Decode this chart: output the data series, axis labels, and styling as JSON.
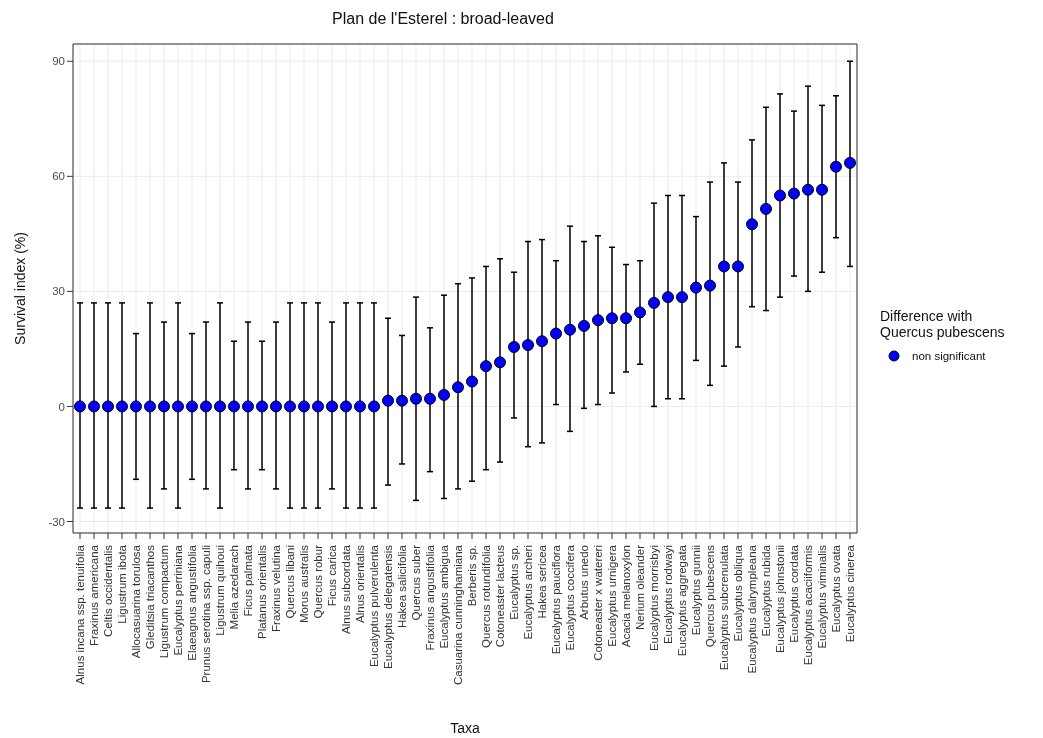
{
  "chart_data": {
    "type": "scatter",
    "title": "Plan de l'Esterel : broad-leaved",
    "xlabel": "Taxa",
    "ylabel": "Survival index (%)",
    "legend_title": "Difference with\nQuercus pubescens",
    "categories": [
      "Alnus incana ssp. tenuifolia",
      "Fraxinus americana",
      "Celtis occidentalis",
      "Ligustrum ibota",
      "Allocasuarina torulosa",
      "Gleditsia triacanthos",
      "Ligustrum compactum",
      "Eucalyptus perriniana",
      "Elaeagnus angustifolia",
      "Prunus serotina ssp. capuli",
      "Ligustrum quihoui",
      "Melia azedarach",
      "Ficus palmata",
      "Platanus orientalis",
      "Fraxinus velutina",
      "Quercus libani",
      "Morus australis",
      "Quercus robur",
      "Ficus carica",
      "Alnus subcordata",
      "Alnus orientalis",
      "Eucalyptus pulverulenta",
      "Eucalyptus delegatensis",
      "Hakea salicifolia",
      "Quercus suber",
      "Fraxinus angustifolia",
      "Eucalyptus ambigua",
      "Casuarina cunninghamiana",
      "Berberis sp.",
      "Quercus rotundifolia",
      "Cotoneaster lacteus",
      "Eucalyptus sp.",
      "Eucalyptus archeri",
      "Hakea sericea",
      "Eucalyptus pauciflora",
      "Eucalyptus coccifera",
      "Arbutus unedo",
      "Cotoneaster x watereri",
      "Eucalyptus urnigera",
      "Acacia melanoxylon",
      "Nerium oleander",
      "Eucalyptus morrisbyi",
      "Eucalyptus rodwayi",
      "Eucalyptus aggregata",
      "Eucalyptus gunnii",
      "Quercus pubescens",
      "Eucalyptus subcrenulata",
      "Eucalyptus obliqua",
      "Eucalyptus dalrympleana",
      "Eucalyptus rubida",
      "Eucalyptus johnstonii",
      "Eucalyptus cordata",
      "Eucalyptus acaciiformis",
      "Eucalyptus viminalis",
      "Eucalyptus ovata",
      "Eucalyptus cinerea"
    ],
    "series": [
      {
        "name": "non significant",
        "color": "#0000ff",
        "values": [
          0,
          0,
          0,
          0,
          0,
          0,
          0,
          0,
          0,
          0,
          0,
          0,
          0,
          0,
          0,
          0,
          0,
          0,
          0,
          0,
          0,
          0,
          1.5,
          1.5,
          2,
          2,
          3,
          5,
          6.5,
          10.5,
          11.5,
          15.5,
          16,
          17,
          19,
          20,
          21,
          22.5,
          23,
          23,
          24.5,
          27,
          28.5,
          28.5,
          31,
          31.5,
          36.5,
          36.5,
          47.5,
          51.5,
          55,
          55.5,
          56.5,
          56.5,
          62.5,
          63.5
        ],
        "errors": [
          [
            -26.5,
            27
          ],
          [
            -26.5,
            27
          ],
          [
            -26.5,
            27
          ],
          [
            -26.5,
            27
          ],
          [
            -19,
            19
          ],
          [
            -26.5,
            27
          ],
          [
            -21.5,
            22
          ],
          [
            -26.5,
            27
          ],
          [
            -19,
            19
          ],
          [
            -21.5,
            22
          ],
          [
            -26.5,
            27
          ],
          [
            -16.5,
            17
          ],
          [
            -21.5,
            22
          ],
          [
            -16.5,
            17
          ],
          [
            -21.5,
            22
          ],
          [
            -26.5,
            27
          ],
          [
            -26.5,
            27
          ],
          [
            -26.5,
            27
          ],
          [
            -21.5,
            22
          ],
          [
            -26.5,
            27
          ],
          [
            -26.5,
            27
          ],
          [
            -26.5,
            27
          ],
          [
            -20.5,
            23
          ],
          [
            -15,
            18.5
          ],
          [
            -24.5,
            28.5
          ],
          [
            -17,
            20.5
          ],
          [
            -24,
            29
          ],
          [
            -21.5,
            32
          ],
          [
            -19.5,
            33.5
          ],
          [
            -16.5,
            36.5
          ],
          [
            -14.5,
            38.5
          ],
          [
            -3,
            35
          ],
          [
            -10.5,
            43
          ],
          [
            -9.5,
            43.5
          ],
          [
            0.5,
            38
          ],
          [
            -6.5,
            47
          ],
          [
            -0.5,
            43
          ],
          [
            0.5,
            44.5
          ],
          [
            3.5,
            41.5
          ],
          [
            9,
            37
          ],
          [
            11,
            38
          ],
          [
            0,
            53
          ],
          [
            2,
            55
          ],
          [
            2,
            55
          ],
          [
            12,
            49.5
          ],
          [
            5.5,
            58.5
          ],
          [
            10.5,
            63.5
          ],
          [
            15.5,
            58.5
          ],
          [
            26,
            69.5
          ],
          [
            25,
            78
          ],
          [
            28.5,
            81.5
          ],
          [
            34,
            77
          ],
          [
            30,
            83.5
          ],
          [
            35,
            78.5
          ],
          [
            44,
            81
          ],
          [
            36.5,
            90
          ]
        ]
      }
    ],
    "ylim": [
      -33,
      94.5
    ],
    "yticks": [
      -30,
      0,
      30,
      60,
      90
    ],
    "grid": true,
    "legend": "right",
    "marker": "circle"
  }
}
